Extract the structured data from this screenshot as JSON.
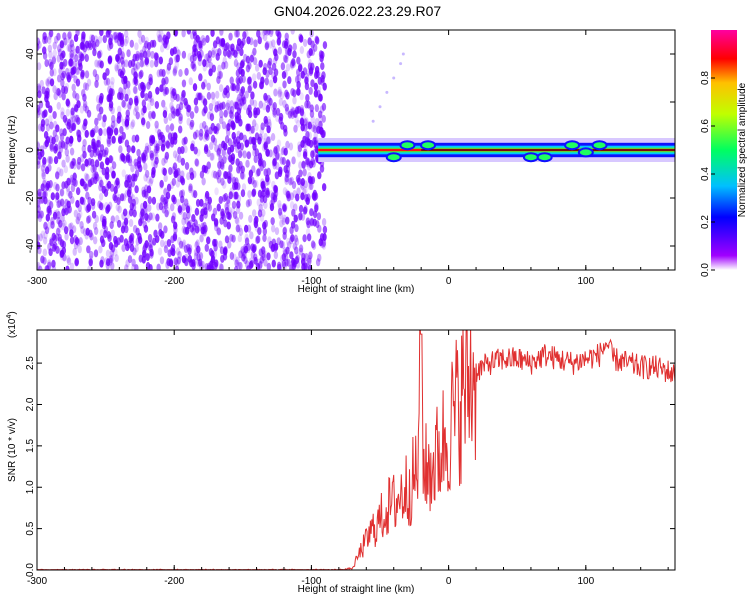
{
  "figure_title": "GN04.2026.022.23.29.R07",
  "colors": {
    "line": "#e03030",
    "scatter": "#7000ff",
    "colorbar_stops": [
      "#a000ff",
      "#0000ff",
      "#00c0ff",
      "#00ff60",
      "#c0ff00",
      "#ffc000",
      "#ff0000",
      "#ff00a0"
    ]
  },
  "chart_data": [
    {
      "type": "heatmap",
      "xlabel": "Height of straight line (km)",
      "ylabel": "Frequency (Hz)",
      "xlim": [
        -300,
        165
      ],
      "ylim": [
        -50,
        50
      ],
      "xticks": [
        -300,
        -200,
        -100,
        0,
        100
      ],
      "yticks": [
        -40,
        -20,
        0,
        20,
        40
      ],
      "regions": [
        {
          "description": "diffuse noise",
          "x_range": [
            -300,
            -90
          ],
          "y_range": [
            -50,
            50
          ],
          "amplitude": 0.1
        },
        {
          "description": "signal band",
          "x_range": [
            -95,
            165
          ],
          "center_frequency": 0,
          "half_width": 3,
          "peak_amplitude": 1.0
        }
      ],
      "colorbar": {
        "label": "Normalized spectral amplitude",
        "range": [
          0.0,
          1.0
        ],
        "ticks": [
          "0.0",
          "0.2",
          "0.4",
          "0.6",
          "0.8"
        ]
      }
    },
    {
      "type": "line",
      "xlabel": "Height of straight line (km)",
      "ylabel": "SNR (10 * v/v)",
      "yscale_label": "(x10",
      "yscale_exp": "4",
      "yscale_close": ")",
      "xlim": [
        -300,
        165
      ],
      "ylim": [
        0,
        2.9
      ],
      "xticks": [
        -300,
        -200,
        -100,
        0,
        100
      ],
      "yticks": [
        "0.0",
        "0.5",
        "1.0",
        "1.5",
        "2.0",
        "2.5"
      ],
      "series": [
        {
          "x": [
            -300,
            -250,
            -200,
            -150,
            -100,
            -80,
            -70,
            -65,
            -60,
            -55,
            -50,
            -45,
            -40,
            -35,
            -30,
            -25,
            -22,
            -20,
            -18,
            -15,
            -10,
            -5,
            0,
            5,
            10,
            15,
            20,
            30,
            40,
            50,
            60,
            70,
            80,
            90,
            100,
            110,
            115,
            120,
            130,
            140,
            150,
            160,
            165
          ],
          "y": [
            0.0,
            0.0,
            0.0,
            0.0,
            0.0,
            0.0,
            0.02,
            0.2,
            0.35,
            0.5,
            0.6,
            0.75,
            0.8,
            0.9,
            1.0,
            1.1,
            1.3,
            2.85,
            1.2,
            1.2,
            1.3,
            1.5,
            1.7,
            1.9,
            2.1,
            2.3,
            2.4,
            2.5,
            2.55,
            2.55,
            2.5,
            2.6,
            2.55,
            2.5,
            2.55,
            2.6,
            2.75,
            2.55,
            2.5,
            2.45,
            2.45,
            2.4,
            2.35
          ]
        }
      ]
    }
  ]
}
